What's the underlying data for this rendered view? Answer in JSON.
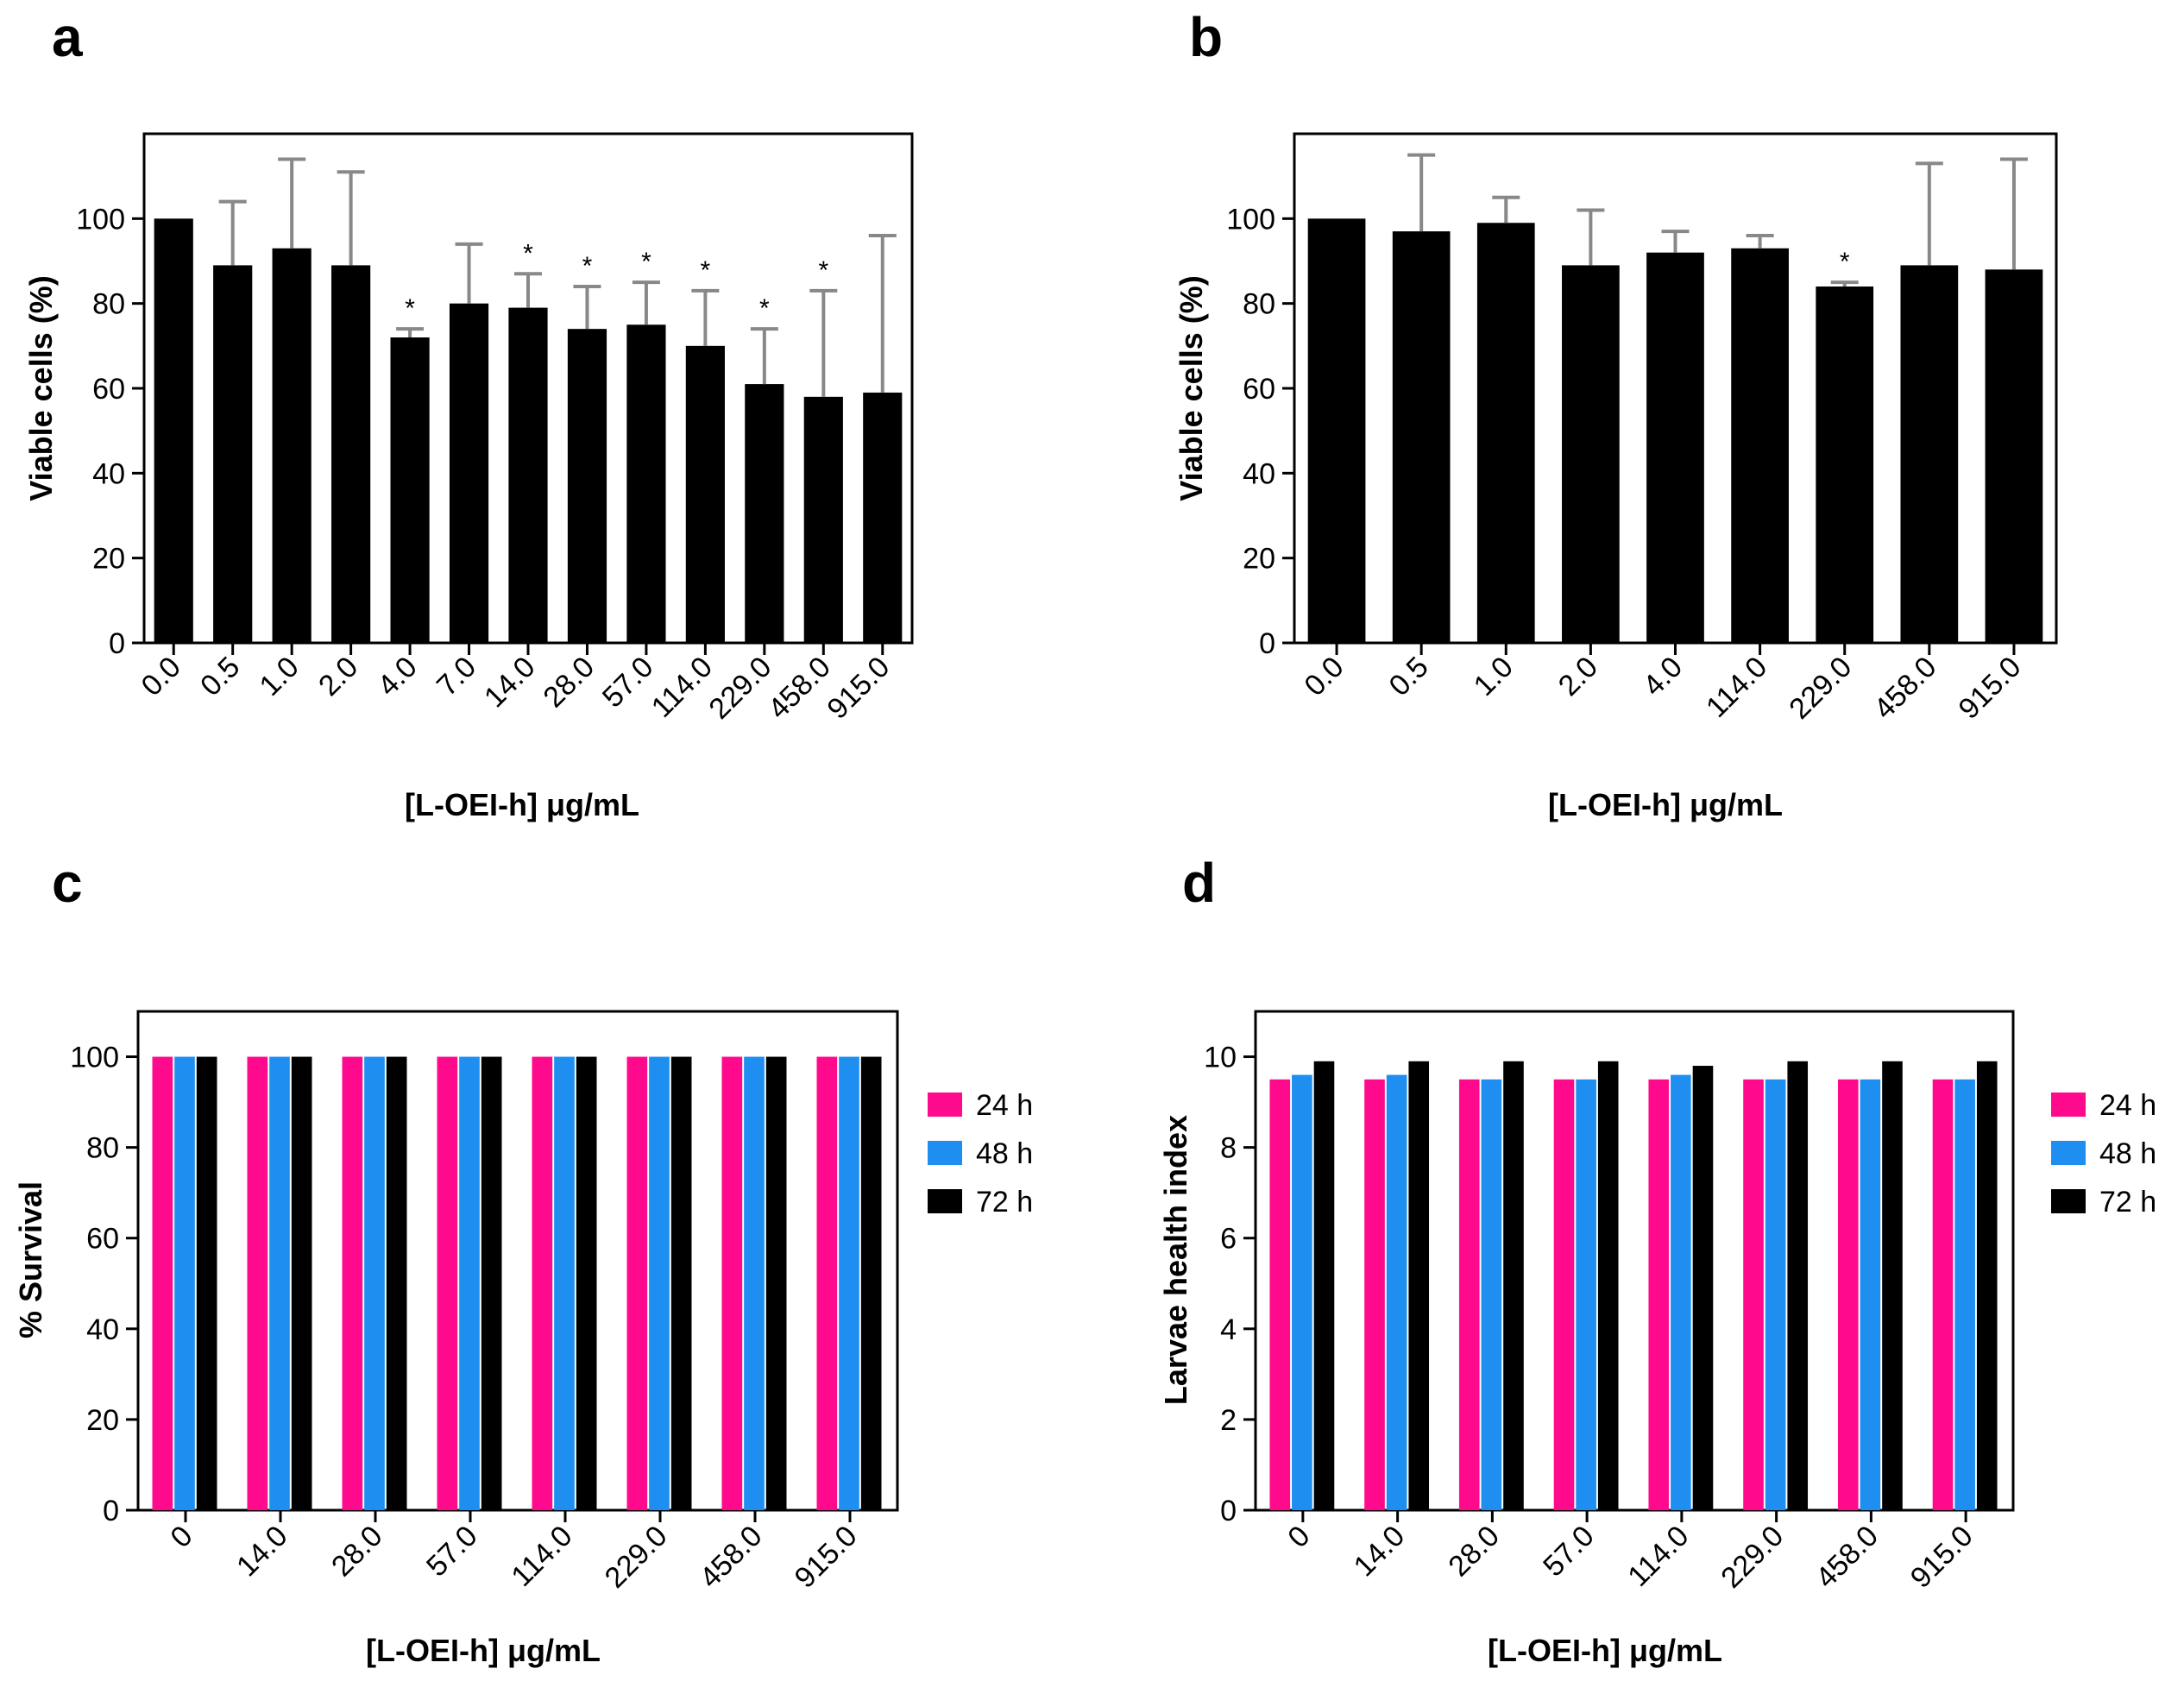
{
  "chart_data": [
    {
      "id": "a",
      "panel_label": "a",
      "type": "bar",
      "xlabel": "[L-OEI-h] μg/mL",
      "ylabel": "Viable cells (%)",
      "ylim": [
        0,
        120
      ],
      "yticks": [
        0,
        20,
        40,
        60,
        80,
        100
      ],
      "categories": [
        "0.0",
        "0.5",
        "1.0",
        "2.0",
        "4.0",
        "7.0",
        "14.0",
        "28.0",
        "57.0",
        "114.0",
        "229.0",
        "458.0",
        "915.0"
      ],
      "values": [
        100,
        89,
        93,
        89,
        72,
        80,
        79,
        74,
        75,
        70,
        61,
        58,
        59
      ],
      "error_upper": [
        100,
        104,
        114,
        111,
        74,
        94,
        87,
        84,
        85,
        83,
        74,
        83,
        96
      ],
      "significant": [
        false,
        false,
        false,
        false,
        true,
        false,
        true,
        true,
        true,
        true,
        true,
        true,
        false
      ],
      "significance_marker": "*",
      "bar_color": "#000000",
      "error_color": "#888888"
    },
    {
      "id": "b",
      "panel_label": "b",
      "type": "bar",
      "xlabel": "[L-OEI-h] μg/mL",
      "ylabel": "Viable cells (%)",
      "ylim": [
        0,
        120
      ],
      "yticks": [
        0,
        20,
        40,
        60,
        80,
        100
      ],
      "categories": [
        "0.0",
        "0.5",
        "1.0",
        "2.0",
        "4.0",
        "114.0",
        "229.0",
        "458.0",
        "915.0"
      ],
      "values": [
        100,
        97,
        99,
        89,
        92,
        93,
        84,
        89,
        88
      ],
      "error_upper": [
        100,
        115,
        105,
        102,
        97,
        96,
        85,
        113,
        114
      ],
      "significant": [
        false,
        false,
        false,
        false,
        false,
        false,
        true,
        false,
        false
      ],
      "significance_marker": "*",
      "bar_color": "#000000",
      "error_color": "#888888"
    },
    {
      "id": "c",
      "panel_label": "c",
      "type": "bar",
      "xlabel": "[L-OEI-h] μg/mL",
      "ylabel": "% Survival",
      "ylim": [
        0,
        110
      ],
      "yticks": [
        0,
        20,
        40,
        60,
        80,
        100
      ],
      "categories": [
        "0",
        "14.0",
        "28.0",
        "57.0",
        "114.0",
        "229.0",
        "458.0",
        "915.0"
      ],
      "series": [
        {
          "name": "24 h",
          "color": "#ff0a8c",
          "values": [
            100,
            100,
            100,
            100,
            100,
            100,
            100,
            100
          ]
        },
        {
          "name": "48 h",
          "color": "#1e8ff0",
          "values": [
            100,
            100,
            100,
            100,
            100,
            100,
            100,
            100
          ]
        },
        {
          "name": "72 h",
          "color": "#000000",
          "values": [
            100,
            100,
            100,
            100,
            100,
            100,
            100,
            100
          ]
        }
      ]
    },
    {
      "id": "d",
      "panel_label": "d",
      "type": "bar",
      "xlabel": "[L-OEI-h] μg/mL",
      "ylabel": "Larvae health index",
      "ylim": [
        0,
        11
      ],
      "yticks": [
        0,
        2,
        4,
        6,
        8,
        10
      ],
      "categories": [
        "0",
        "14.0",
        "28.0",
        "57.0",
        "114.0",
        "229.0",
        "458.0",
        "915.0"
      ],
      "series": [
        {
          "name": "24 h",
          "color": "#ff0a8c",
          "values": [
            9.5,
            9.5,
            9.5,
            9.5,
            9.5,
            9.5,
            9.5,
            9.5
          ]
        },
        {
          "name": "48 h",
          "color": "#1e8ff0",
          "values": [
            9.6,
            9.6,
            9.5,
            9.5,
            9.6,
            9.5,
            9.5,
            9.5
          ]
        },
        {
          "name": "72 h",
          "color": "#000000",
          "values": [
            9.9,
            9.9,
            9.9,
            9.9,
            9.8,
            9.9,
            9.9,
            9.9
          ]
        }
      ]
    }
  ]
}
